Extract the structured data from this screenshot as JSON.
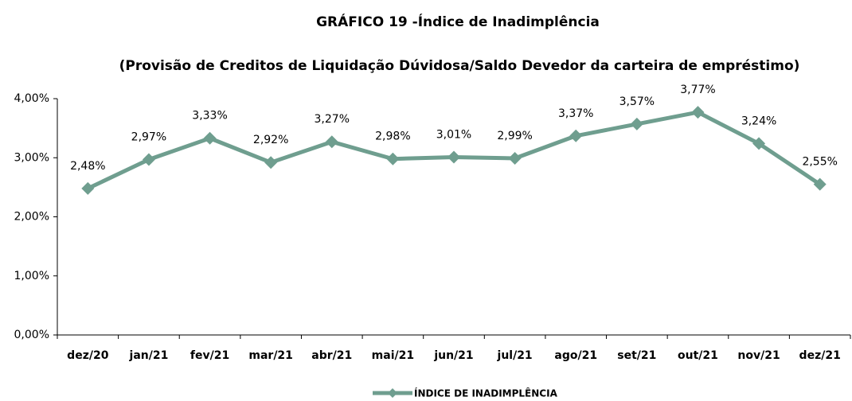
{
  "chart_data": {
    "type": "line",
    "title": "GRÁFICO 19 -Índice de Inadimplência",
    "subtitle": "(Provisão de Creditos de Liquidação Dúvidosa/Saldo Devedor da carteira de empréstimo)",
    "categories": [
      "dez/20",
      "jan/21",
      "fev/21",
      "mar/21",
      "abr/21",
      "mai/21",
      "jun/21",
      "jul/21",
      "ago/21",
      "set/21",
      "out/21",
      "nov/21",
      "dez/21"
    ],
    "series": [
      {
        "name": "ÍNDICE DE INADIMPLÊNCIA",
        "color": "#6f9e8f",
        "values": [
          2.48,
          2.97,
          3.33,
          2.92,
          3.27,
          2.98,
          3.01,
          2.99,
          3.37,
          3.57,
          3.77,
          3.24,
          2.55
        ],
        "value_labels": [
          "2,48%",
          "2,97%",
          "3,33%",
          "2,92%",
          "3,27%",
          "2,98%",
          "3,01%",
          "2,99%",
          "3,37%",
          "3,57%",
          "3,77%",
          "3,24%",
          "2,55%"
        ]
      }
    ],
    "ylim": [
      0,
      4
    ],
    "yticks": [
      {
        "value": 0,
        "label": "0,00%"
      },
      {
        "value": 1,
        "label": "1,00%"
      },
      {
        "value": 2,
        "label": "2,00%"
      },
      {
        "value": 3,
        "label": "3,00%"
      },
      {
        "value": 4,
        "label": "4,00%"
      }
    ],
    "grid": false,
    "legend": "bottom"
  }
}
